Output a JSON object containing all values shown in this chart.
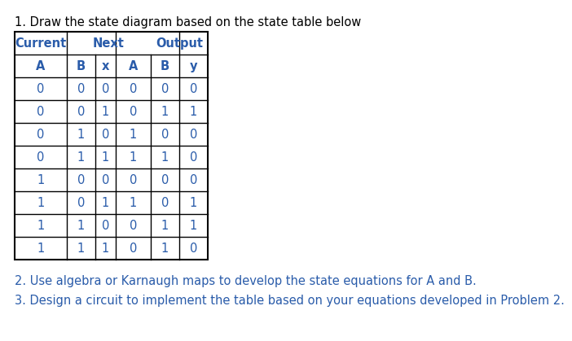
{
  "title1": "1. Draw the state diagram based on the state table below",
  "title2": "2. Use algebra or Karnaugh maps to develop the state equations for A and B.",
  "title3": "3. Design a circuit to implement the table based on your equations developed in Problem 2.",
  "text_color": "#2a5caa",
  "bg_color": "#ffffff",
  "border_color": "#000000",
  "font_size_title": 10.5,
  "font_size_table": 10.5,
  "font_size_footer": 10.5,
  "header_row1": [
    "Current",
    "",
    "",
    "Next",
    "",
    "Output"
  ],
  "header_row2": [
    "A",
    "B",
    "x",
    "A",
    "B",
    "y"
  ],
  "rows_data": [
    [
      "0",
      "0",
      "0",
      "0",
      "0",
      "0"
    ],
    [
      "0",
      "0",
      "1",
      "0",
      "1",
      "1"
    ],
    [
      "0",
      "1",
      "0",
      "1",
      "0",
      "0"
    ],
    [
      "0",
      "1",
      "1",
      "1",
      "1",
      "0"
    ],
    [
      "1",
      "0",
      "0",
      "0",
      "0",
      "0"
    ],
    [
      "1",
      "0",
      "1",
      "1",
      "0",
      "1"
    ],
    [
      "1",
      "1",
      "0",
      "0",
      "1",
      "1"
    ],
    [
      "1",
      "1",
      "1",
      "0",
      "1",
      "0"
    ]
  ]
}
